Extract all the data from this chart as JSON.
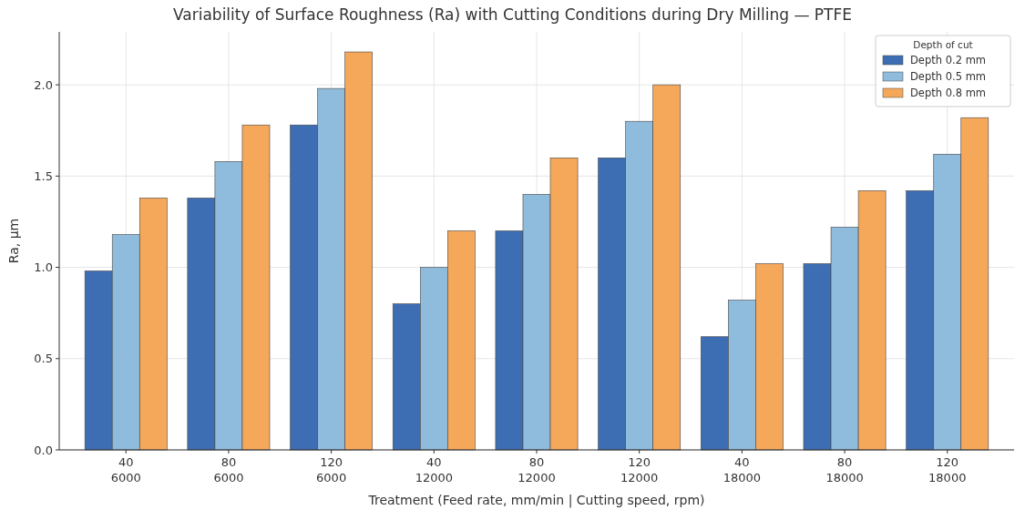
{
  "chart_data": {
    "type": "bar",
    "title": "Variability of Surface Roughness (Ra) with Cutting Conditions during Dry Milling — PTFE",
    "xlabel": "Treatment (Feed rate, mm/min  |  Cutting speed, rpm)",
    "ylabel": "Ra, µm",
    "legend_title": "Depth of cut",
    "categories": [
      "40\n6000",
      "80\n6000",
      "120\n6000",
      "40\n12000",
      "80\n12000",
      "120\n12000",
      "40\n18000",
      "80\n18000",
      "120\n18000"
    ],
    "series": [
      {
        "name": "Depth 0.2 mm",
        "color": "#3d6eb4",
        "values": [
          0.98,
          1.38,
          1.78,
          0.8,
          1.2,
          1.6,
          0.62,
          1.02,
          1.42
        ]
      },
      {
        "name": "Depth 0.5 mm",
        "color": "#8fbbdc",
        "values": [
          1.18,
          1.58,
          1.98,
          1.0,
          1.4,
          1.8,
          0.82,
          1.22,
          1.62
        ]
      },
      {
        "name": "Depth 0.8 mm",
        "color": "#f6a85a",
        "values": [
          1.38,
          1.78,
          2.18,
          1.2,
          1.6,
          2.0,
          1.02,
          1.42,
          1.82
        ]
      }
    ],
    "ylim": [
      0,
      2.29
    ],
    "yticks": [
      {
        "value": 0,
        "label": "0.0"
      },
      {
        "value": 0.5,
        "label": "0.5"
      },
      {
        "value": 1,
        "label": "1.0"
      },
      {
        "value": 1.5,
        "label": "1.5"
      },
      {
        "value": 2,
        "label": "2.0"
      }
    ],
    "grid": true,
    "legend": "top right"
  }
}
